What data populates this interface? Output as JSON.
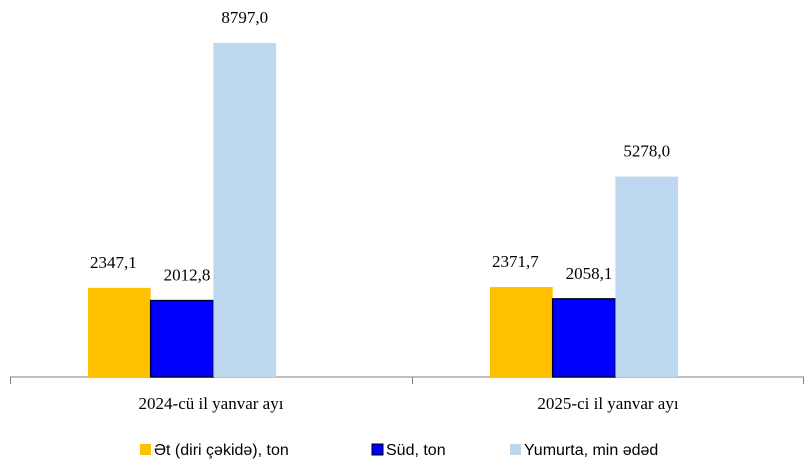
{
  "chart_data": {
    "type": "bar",
    "categories": [
      "2024-cü il yanvar ayı",
      "2025-ci il yanvar ayı"
    ],
    "series": [
      {
        "name": "Ət (diri çəkidə), ton",
        "color": "#ffc000",
        "values": [
          2347.1,
          2371.7
        ],
        "value_labels": [
          "2347,1",
          "2371,7"
        ]
      },
      {
        "name": "Süd, ton",
        "color": "#0000ff",
        "values": [
          2012.8,
          2058.1
        ],
        "value_labels": [
          "2012,8",
          "2058,1"
        ]
      },
      {
        "name": "Yumurta, min ədəd",
        "color": "#bdd7ee",
        "values": [
          8797.0,
          5278.0
        ],
        "value_labels": [
          "8797,0",
          "5278,0"
        ]
      }
    ]
  }
}
